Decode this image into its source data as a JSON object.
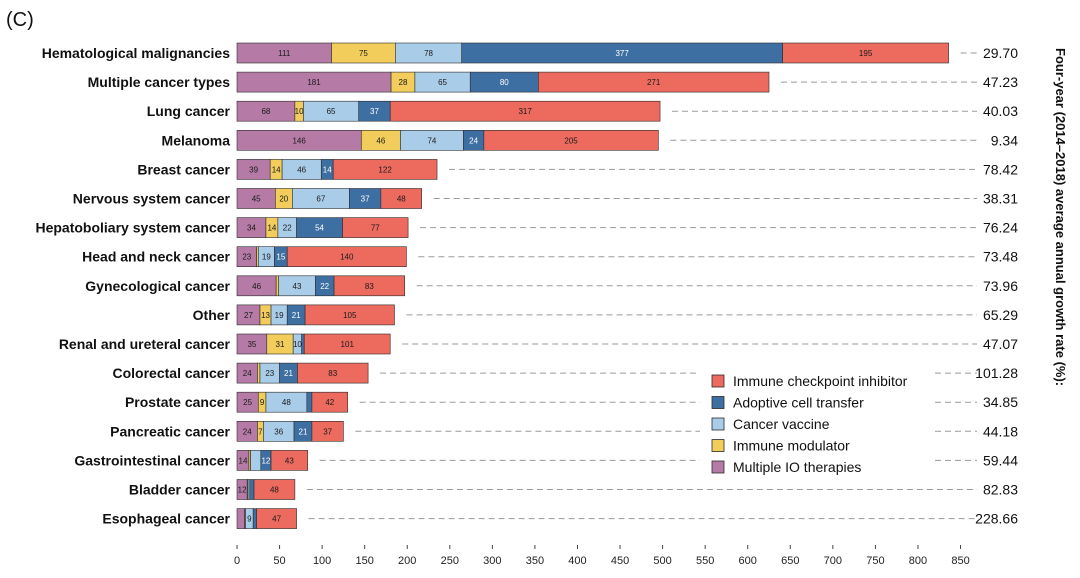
{
  "panel_label": "(C)",
  "chart_data": {
    "type": "bar",
    "orientation": "horizontal",
    "stacked": true,
    "categories": [
      "Hematological malignancies",
      "Multiple cancer types",
      "Lung cancer",
      "Melanoma",
      "Breast cancer",
      "Nervous system cancer",
      "Hepatoboliary system cancer",
      "Head and neck cancer",
      "Gynecological cancer",
      "Other",
      "Renal and ureteral cancer",
      "Colorectal cancer",
      "Prostate cancer",
      "Pancreatic cancer",
      "Gastrointestinal cancer",
      "Bladder cancer",
      "Esophageal cancer"
    ],
    "series": [
      {
        "name": "Multiple IO therapies",
        "color": "#b57ba6",
        "values": [
          111,
          181,
          68,
          146,
          39,
          45,
          34,
          23,
          46,
          27,
          35,
          24,
          25,
          24,
          14,
          12,
          9
        ],
        "labels": [
          "111",
          "181",
          "68",
          "146",
          "39",
          "45",
          "34",
          "23",
          "46",
          "27",
          "35",
          "24",
          "25",
          "24",
          "14",
          "12",
          ""
        ]
      },
      {
        "name": "Immune modulator",
        "color": "#f2cd5c",
        "values": [
          75,
          28,
          10,
          46,
          14,
          20,
          14,
          2,
          3,
          13,
          31,
          3,
          9,
          7,
          2,
          1,
          1
        ],
        "labels": [
          "75",
          "28",
          "10",
          "46",
          "14",
          "20",
          "14",
          "",
          "",
          "13",
          "31",
          "",
          "9",
          "7",
          "",
          "",
          ""
        ]
      },
      {
        "name": "Cancer vaccine",
        "color": "#a9cce9",
        "values": [
          78,
          65,
          65,
          74,
          46,
          67,
          22,
          19,
          43,
          19,
          10,
          23,
          48,
          36,
          12,
          2,
          9
        ],
        "labels": [
          "78",
          "65",
          "65",
          "74",
          "46",
          "67",
          "22",
          "19",
          "43",
          "19",
          "10",
          "23",
          "48",
          "36",
          "",
          "",
          "9"
        ]
      },
      {
        "name": "Adoptive cell transfer",
        "color": "#3e6fa3",
        "values": [
          377,
          80,
          37,
          24,
          14,
          37,
          54,
          15,
          22,
          21,
          3,
          21,
          6,
          21,
          12,
          5,
          4
        ],
        "labels": [
          "377",
          "80",
          "37",
          "24",
          "14",
          "37",
          "54",
          "15",
          "22",
          "21",
          "",
          "21",
          "",
          "21",
          "12",
          "",
          ""
        ]
      },
      {
        "name": "Immune checkpoint inhibitor",
        "color": "#ec6a5e",
        "values": [
          195,
          271,
          317,
          205,
          122,
          48,
          77,
          140,
          83,
          105,
          101,
          83,
          42,
          37,
          43,
          48,
          47
        ],
        "labels": [
          "195",
          "271",
          "317",
          "205",
          "122",
          "48",
          "77",
          "140",
          "83",
          "105",
          "101",
          "83",
          "42",
          "37",
          "43",
          "48",
          "47"
        ]
      }
    ],
    "legend_order": [
      "Immune checkpoint inhibitor",
      "Adoptive cell transfer",
      "Cancer vaccine",
      "Immune modulator",
      "Multiple IO therapies"
    ],
    "xlim": [
      0,
      850
    ],
    "xticks": [
      0,
      50,
      100,
      150,
      200,
      250,
      300,
      350,
      400,
      450,
      500,
      550,
      600,
      650,
      700,
      750,
      800,
      850
    ],
    "growth_rates": [
      "29.70",
      "47.23",
      "40.03",
      "9.34",
      "78.42",
      "38.31",
      "76.24",
      "73.48",
      "73.96",
      "65.29",
      "47.07",
      "101.28",
      "34.85",
      "44.18",
      "59.44",
      "82.83",
      "228.66"
    ],
    "right_axis_title": "Four-year (2014–2018) average annual growth rate (%):",
    "xlabel": "",
    "ylabel": ""
  }
}
